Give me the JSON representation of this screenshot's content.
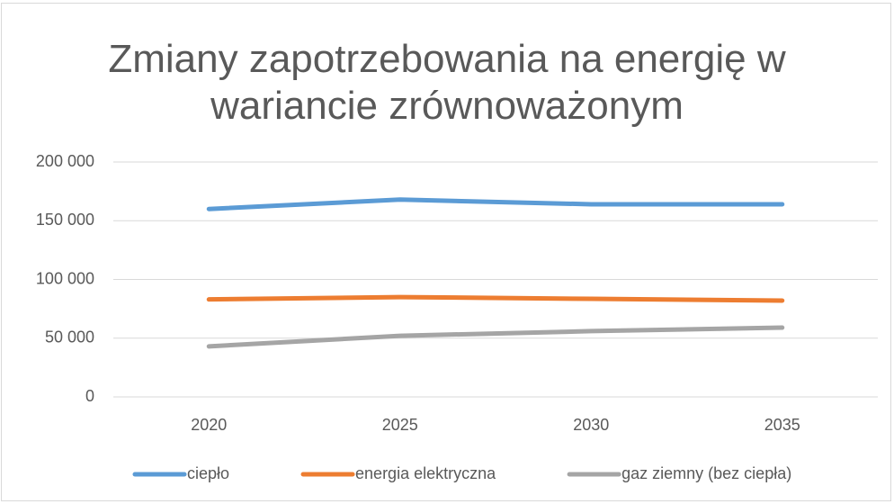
{
  "chart_data": {
    "type": "line",
    "title": "Zmiany zapotrzebowania na energię w wariancie zrównoważonym",
    "categories": [
      "2020",
      "2025",
      "2030",
      "2035"
    ],
    "series": [
      {
        "name": "ciepło",
        "color": "#5b9bd5",
        "values": [
          160000,
          168000,
          164000,
          164000
        ]
      },
      {
        "name": "energia elektryczna",
        "color": "#ed7d31",
        "values": [
          83000,
          85000,
          83500,
          82000
        ]
      },
      {
        "name": "gaz ziemny (bez ciepła)",
        "color": "#a5a5a5",
        "values": [
          43000,
          52000,
          56000,
          59000
        ]
      }
    ],
    "ylim": [
      0,
      200000
    ],
    "yticks": [
      0,
      {
        "value": 50000,
        "label": "50 000"
      },
      {
        "value": 100000,
        "label": "100 000"
      },
      {
        "value": 150000,
        "label": "150 000"
      },
      {
        "value": 200000,
        "label": "200 000"
      }
    ],
    "grid": true,
    "legend": "bottom"
  }
}
